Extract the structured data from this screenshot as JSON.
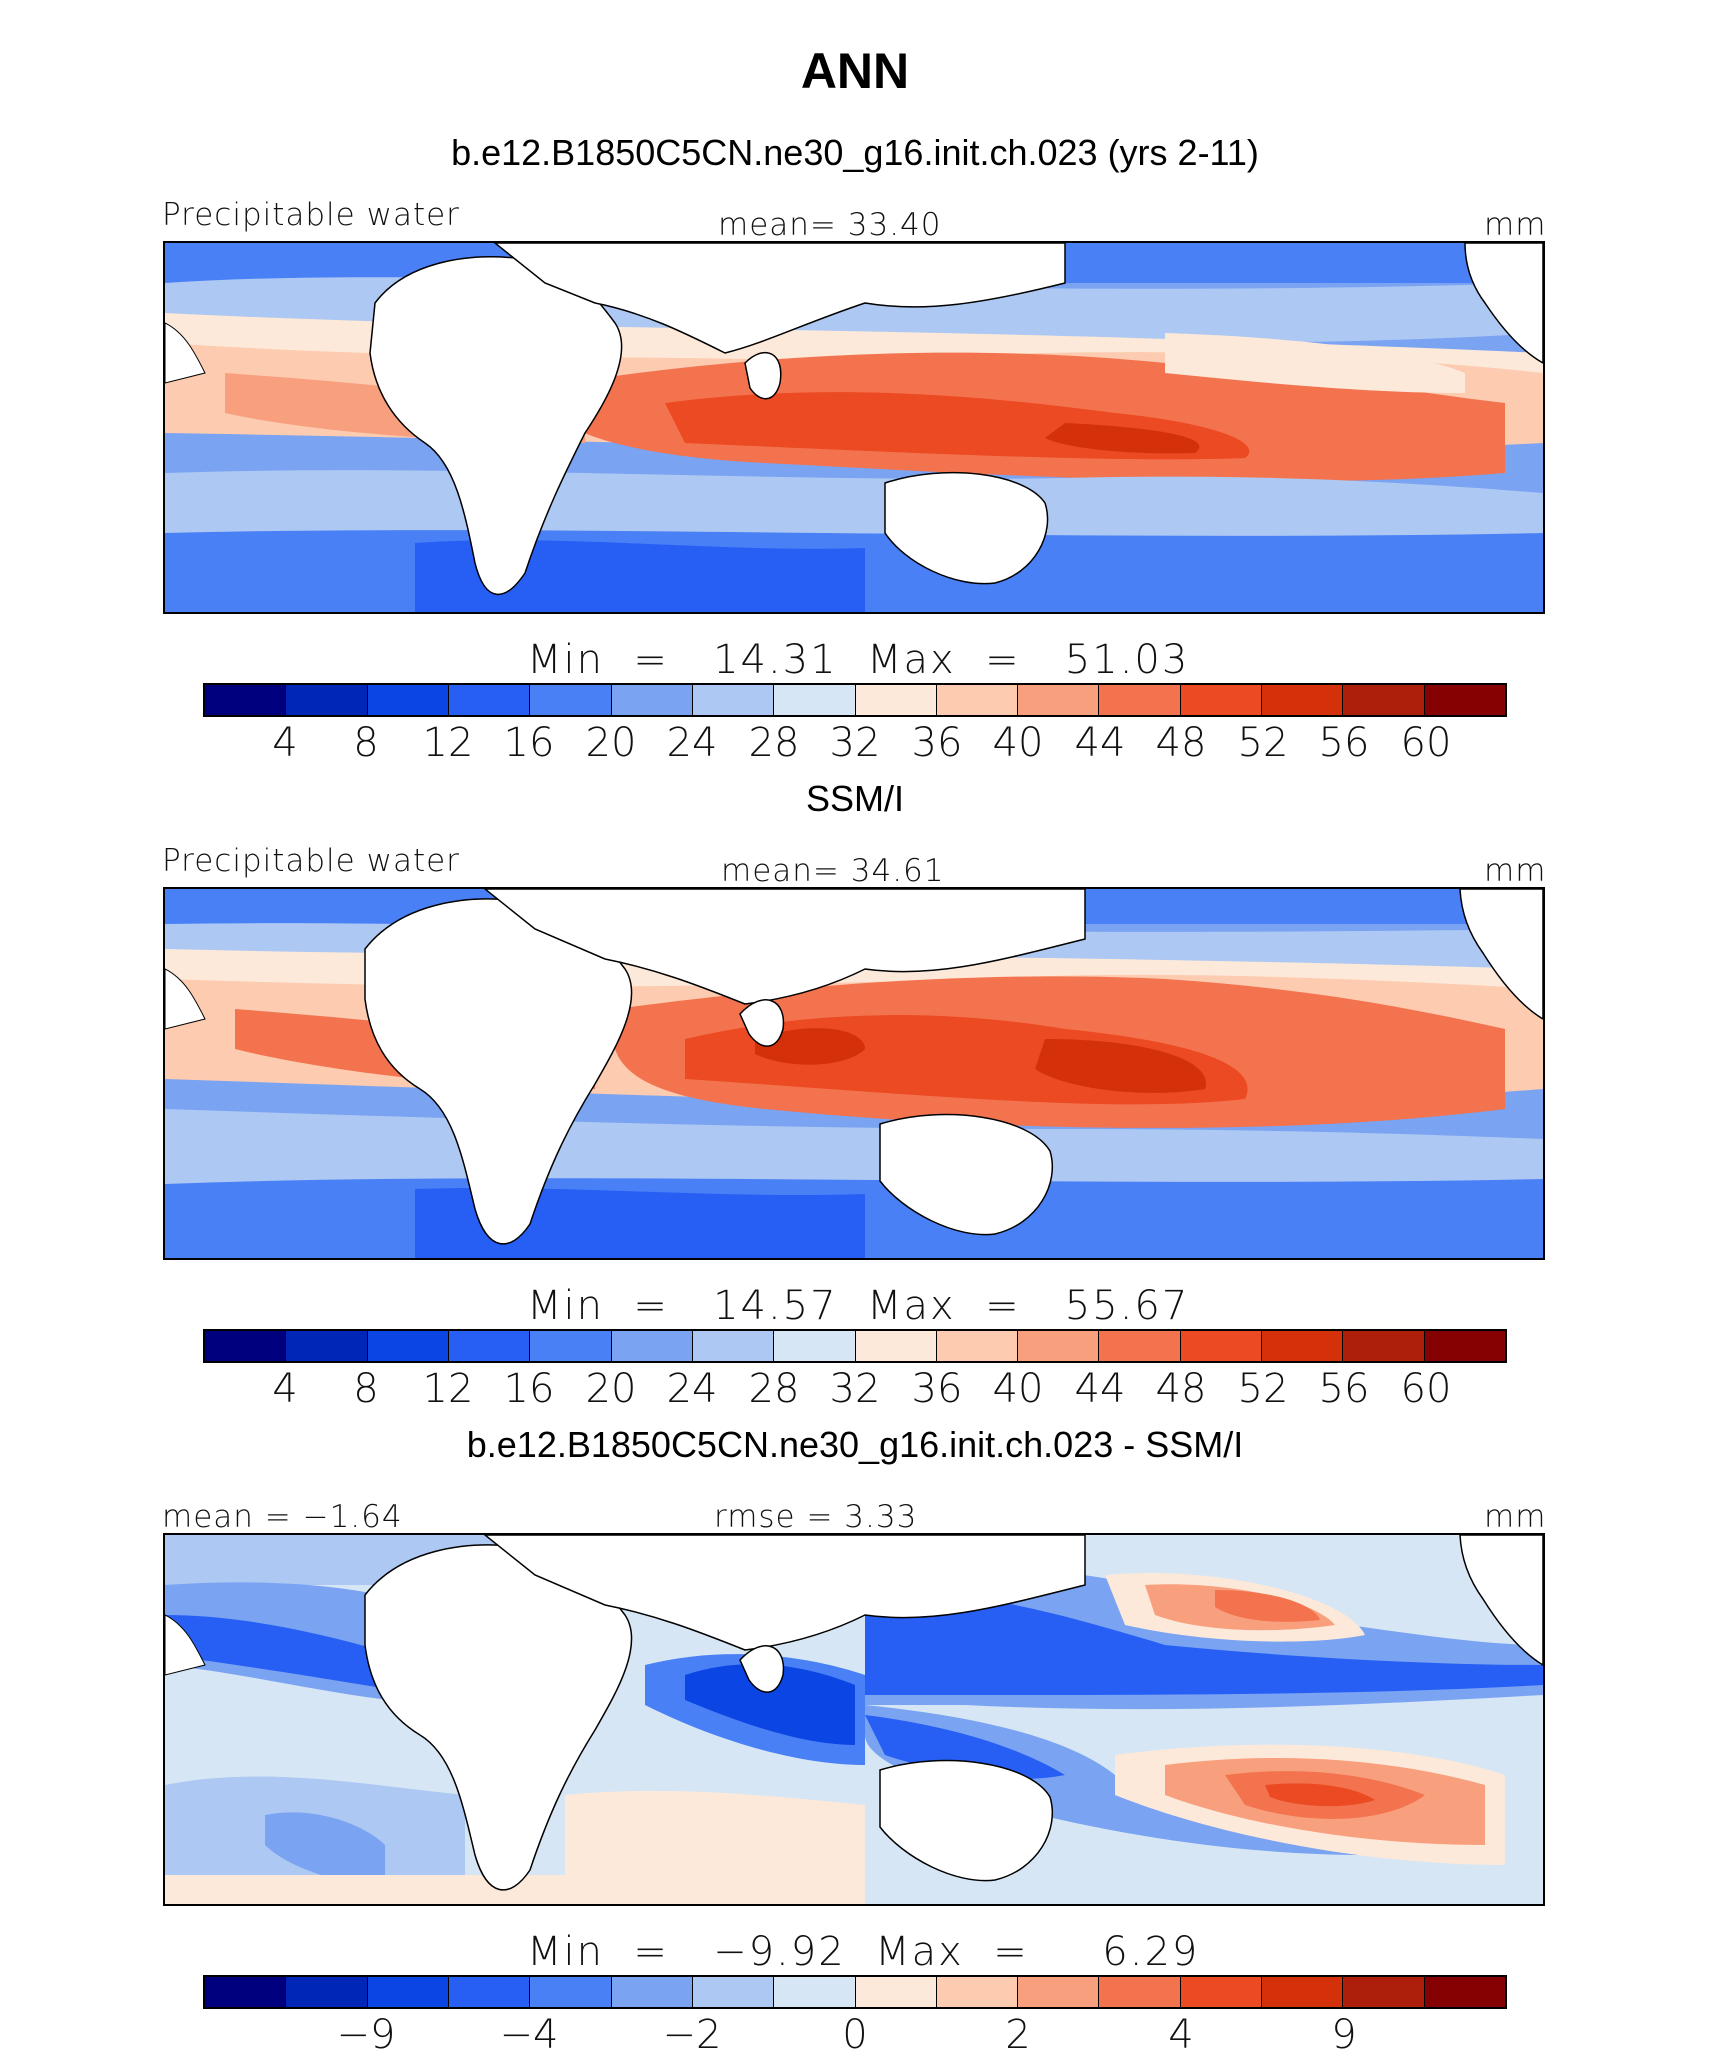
{
  "page": {
    "title": "ANN"
  },
  "palette": [
    "#00007f",
    "#0026b8",
    "#0b45e3",
    "#275ff5",
    "#4a80f5",
    "#7aa3f2",
    "#adc8f2",
    "#d6e6f5",
    "#fde9da",
    "#fccbb0",
    "#f8a07e",
    "#f3734f",
    "#eb4a22",
    "#d4300a",
    "#ad1f0a",
    "#860202"
  ],
  "panels": [
    {
      "heading": "b.e12.B1850C5CN.ne30_g16.init.ch.023 (yrs 2-11)",
      "left_label": "Precipitable water",
      "center_label": "mean=   33.40",
      "right_label": "mm",
      "minmax": "Min  =   14.31  Max  =   51.03",
      "tick_labels": [
        "4",
        "8",
        "12",
        "16",
        "20",
        "24",
        "28",
        "32",
        "36",
        "40",
        "44",
        "48",
        "52",
        "56",
        "60"
      ]
    },
    {
      "heading": "SSM/I",
      "left_label": "Precipitable water",
      "center_label": "mean=   34.61",
      "right_label": "mm",
      "minmax": "Min  =   14.57  Max  =   55.67",
      "tick_labels": [
        "4",
        "8",
        "12",
        "16",
        "20",
        "24",
        "28",
        "32",
        "36",
        "40",
        "44",
        "48",
        "52",
        "56",
        "60"
      ]
    },
    {
      "heading": "b.e12.B1850C5CN.ne30_g16.init.ch.023 - SSM/I",
      "left_label": "mean =   −1.64",
      "center_label": "rmse =     3.33",
      "right_label": "mm",
      "minmax": "Min  =   −9.92  Max  =     6.29",
      "tick_labels": [
        "−9",
        "−4",
        "−2",
        "0",
        "2",
        "4",
        "9"
      ]
    }
  ],
  "chart_data": [
    {
      "type": "heatmap",
      "title": "b.e12.B1850C5CN.ne30_g16.init.ch.023 (yrs 2-11)",
      "variable": "Precipitable water",
      "units": "mm",
      "mean": 33.4,
      "min": 14.31,
      "max": 51.03,
      "contour_levels": [
        4,
        8,
        12,
        16,
        20,
        24,
        28,
        32,
        36,
        40,
        44,
        48,
        52,
        56,
        60
      ],
      "colormap": "blue-white-red (16 classes)"
    },
    {
      "type": "heatmap",
      "title": "SSM/I",
      "variable": "Precipitable water",
      "units": "mm",
      "mean": 34.61,
      "min": 14.57,
      "max": 55.67,
      "contour_levels": [
        4,
        8,
        12,
        16,
        20,
        24,
        28,
        32,
        36,
        40,
        44,
        48,
        52,
        56,
        60
      ],
      "colormap": "blue-white-red (16 classes)"
    },
    {
      "type": "heatmap",
      "title": "b.e12.B1850C5CN.ne30_g16.init.ch.023 - SSM/I",
      "units": "mm",
      "mean": -1.64,
      "rmse": 3.33,
      "min": -9.92,
      "max": 6.29,
      "contour_levels": [
        -9,
        -4,
        -2,
        0,
        2,
        4,
        9
      ],
      "colormap": "blue-white-red (16 classes)"
    }
  ]
}
